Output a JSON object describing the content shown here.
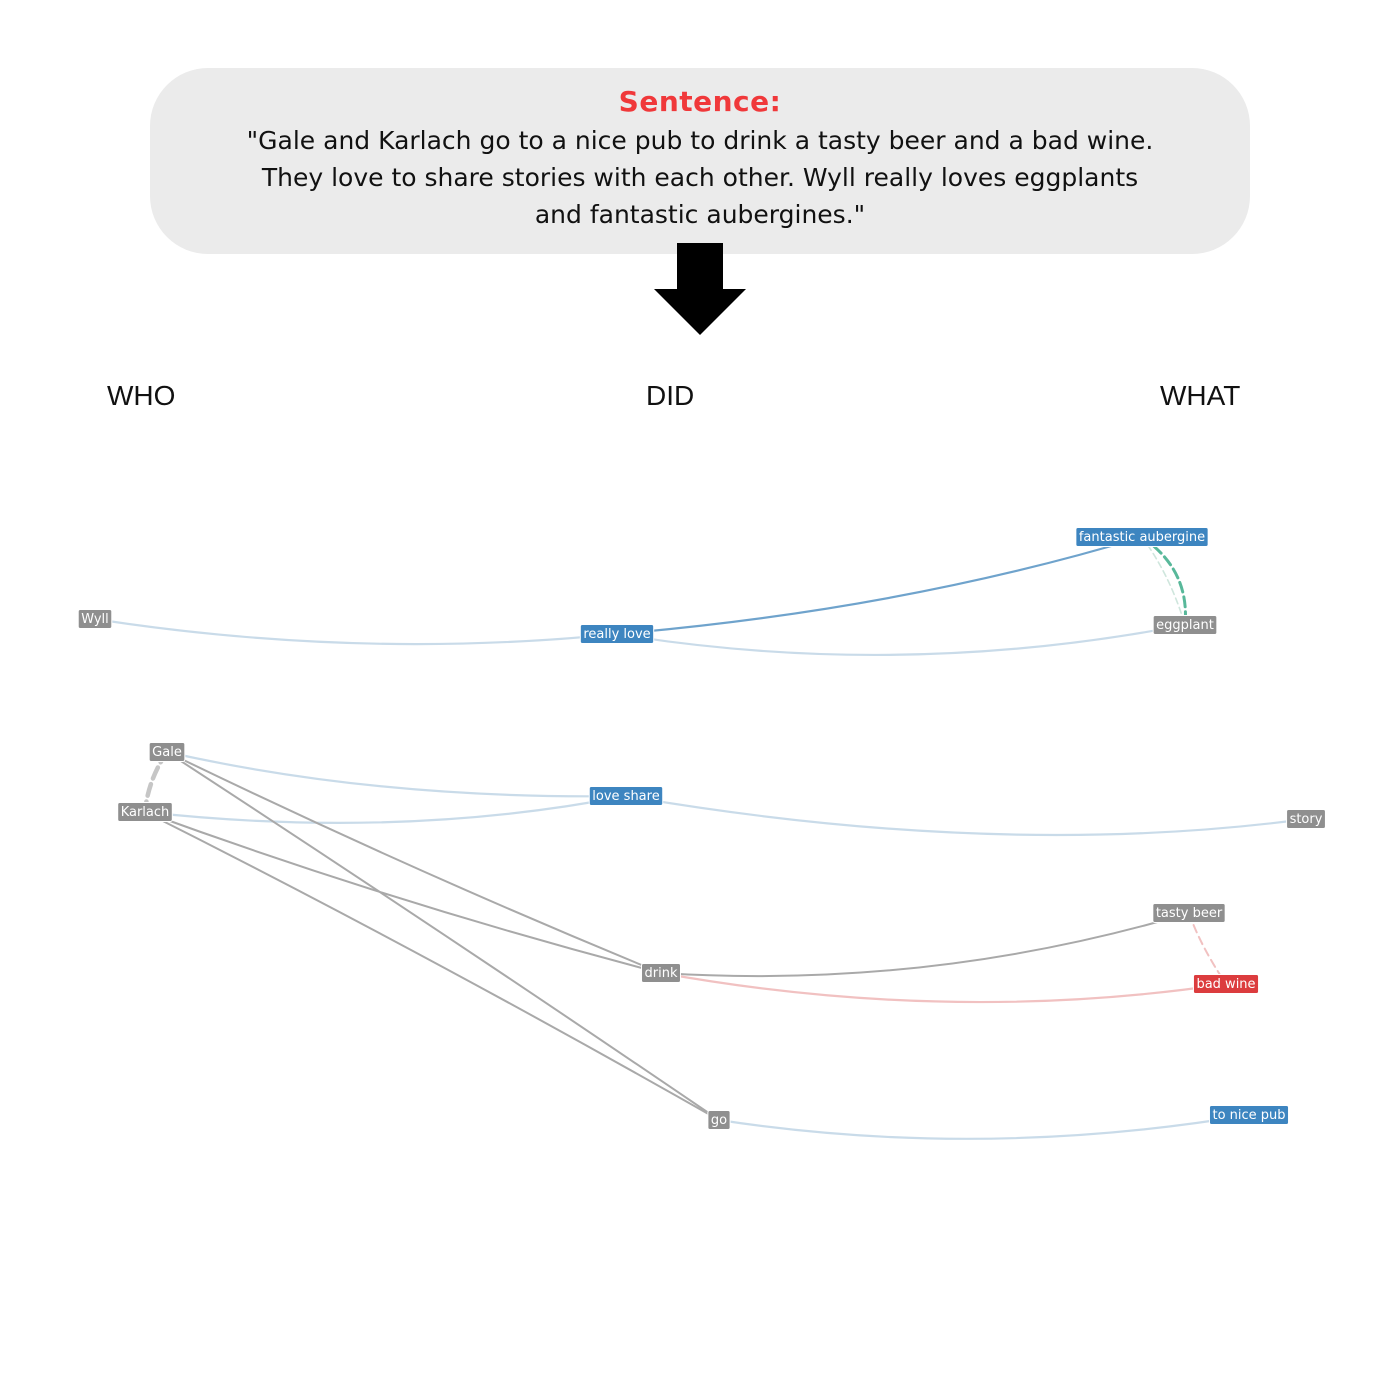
{
  "sentence": {
    "label": "Sentence:",
    "text": "\"Gale and Karlach go to a nice pub to drink a tasty beer and a bad wine. They love to share stories with each other. Wyll really loves eggplants and fantastic aubergines.\""
  },
  "columns": {
    "who": "WHO",
    "did": "DID",
    "what": "WHAT"
  },
  "colors": {
    "gray_node": "#8f8f8f",
    "blue_node": "#3d85c0",
    "red_node": "#dc3c3e",
    "light_blue_edge": "#c9dbe9",
    "blue_edge": "#6fa3cc",
    "gray_edge": "#a9a9a9",
    "light_red_edge": "#f1c1c1",
    "teal_edge": "#58b89a",
    "dashed_gray_edge": "#c6c6c6"
  },
  "nodes": [
    {
      "id": "wyll",
      "label": "Wyll",
      "group": "who",
      "color": "gray"
    },
    {
      "id": "gale",
      "label": "Gale",
      "group": "who",
      "color": "gray"
    },
    {
      "id": "karlach",
      "label": "Karlach",
      "group": "who",
      "color": "gray"
    },
    {
      "id": "really_love",
      "label": "really love",
      "group": "did",
      "color": "blue"
    },
    {
      "id": "love_share",
      "label": "love share",
      "group": "did",
      "color": "blue"
    },
    {
      "id": "drink",
      "label": "drink",
      "group": "did",
      "color": "gray"
    },
    {
      "id": "go",
      "label": "go",
      "group": "did",
      "color": "gray"
    },
    {
      "id": "fantastic_aubergine",
      "label": "fantastic aubergine",
      "group": "what",
      "color": "blue"
    },
    {
      "id": "eggplant",
      "label": "eggplant",
      "group": "what",
      "color": "gray"
    },
    {
      "id": "story",
      "label": "story",
      "group": "what",
      "color": "gray"
    },
    {
      "id": "tasty_beer",
      "label": "tasty beer",
      "group": "what",
      "color": "gray"
    },
    {
      "id": "bad_wine",
      "label": "bad wine",
      "group": "what",
      "color": "red"
    },
    {
      "id": "to_nice_pub",
      "label": "to nice pub",
      "group": "what",
      "color": "blue"
    }
  ],
  "edges": [
    {
      "from": "wyll",
      "to": "really_love",
      "style": "light_blue"
    },
    {
      "from": "really_love",
      "to": "fantastic_aubergine",
      "style": "blue"
    },
    {
      "from": "really_love",
      "to": "eggplant",
      "style": "light_blue"
    },
    {
      "from": "fantastic_aubergine",
      "to": "eggplant",
      "style": "teal_dashed"
    },
    {
      "from": "fantastic_aubergine",
      "to": "eggplant",
      "style": "light_dashed"
    },
    {
      "from": "gale",
      "to": "karlach",
      "style": "gray_dashed"
    },
    {
      "from": "gale",
      "to": "love_share",
      "style": "light_blue"
    },
    {
      "from": "karlach",
      "to": "love_share",
      "style": "light_blue"
    },
    {
      "from": "love_share",
      "to": "story",
      "style": "light_blue"
    },
    {
      "from": "gale",
      "to": "drink",
      "style": "gray"
    },
    {
      "from": "karlach",
      "to": "drink",
      "style": "gray"
    },
    {
      "from": "gale",
      "to": "go",
      "style": "gray"
    },
    {
      "from": "karlach",
      "to": "go",
      "style": "gray"
    },
    {
      "from": "drink",
      "to": "tasty_beer",
      "style": "gray"
    },
    {
      "from": "drink",
      "to": "bad_wine",
      "style": "light_red"
    },
    {
      "from": "tasty_beer",
      "to": "bad_wine",
      "style": "light_red_dashed"
    },
    {
      "from": "go",
      "to": "to_nice_pub",
      "style": "light_blue"
    }
  ]
}
